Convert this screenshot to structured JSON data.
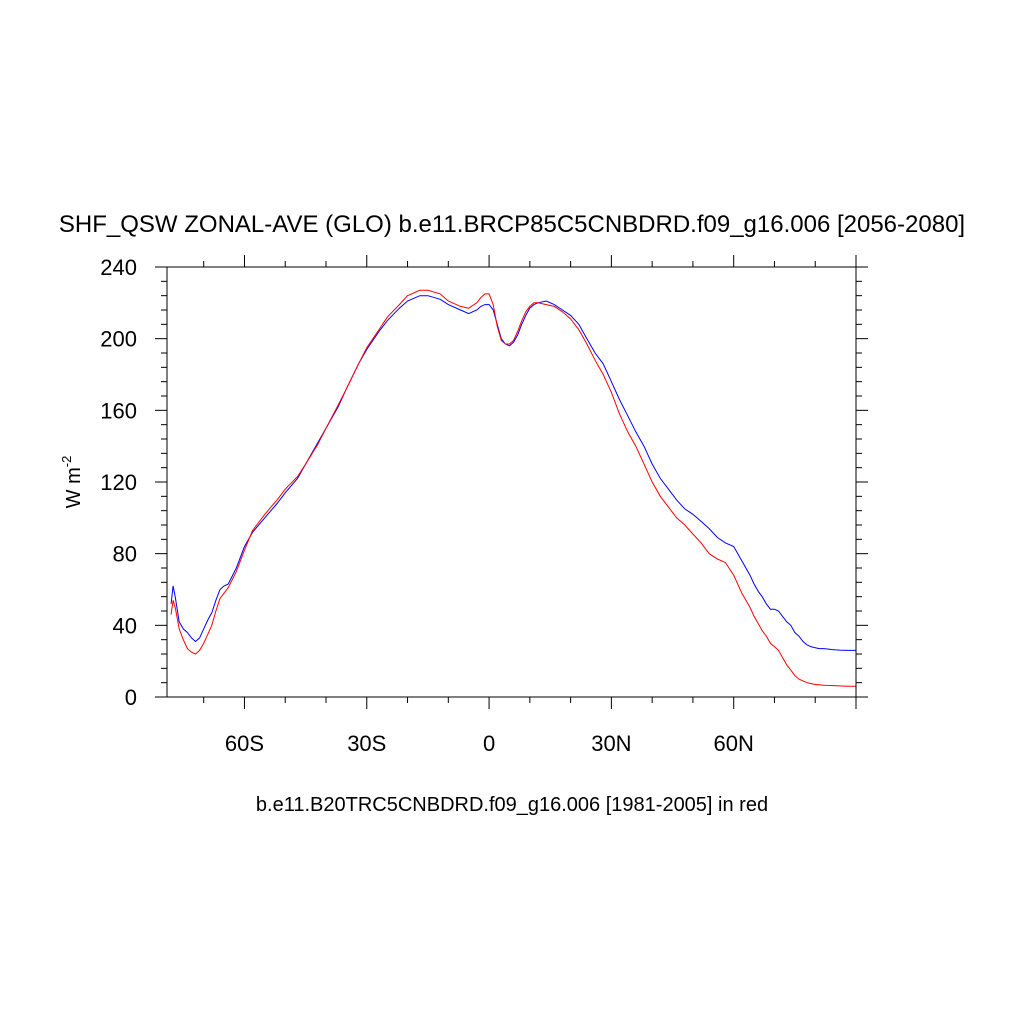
{
  "chart_data": {
    "type": "line",
    "title": "SHF_QSW ZONAL-AVE (GLO) b.e11.BRCP85C5CNBDRD.f09_g16.006 [2056-2080]",
    "xlabel": "b.e11.B20TRC5CNBDRD.f09_g16.006 [1981-2005] in red",
    "ylabel_main": "W m",
    "ylabel_sup": "-2",
    "xlim": [
      -79,
      90
    ],
    "ylim": [
      0,
      240
    ],
    "x_ticks": [
      {
        "value": -60,
        "label": "60S"
      },
      {
        "value": -30,
        "label": "30S"
      },
      {
        "value": 0,
        "label": "0"
      },
      {
        "value": 30,
        "label": "30N"
      },
      {
        "value": 60,
        "label": "60N"
      }
    ],
    "y_ticks": [
      0,
      40,
      80,
      120,
      160,
      200,
      240
    ],
    "grid": false,
    "series": [
      {
        "color": "#0000ff",
        "x": [
          -78,
          -77.5,
          -77,
          -76,
          -75,
          -74,
          -73,
          -72,
          -71,
          -70,
          -69,
          -68,
          -67,
          -66,
          -65,
          -64,
          -62,
          -60,
          -58,
          -55,
          -52,
          -50,
          -47,
          -45,
          -42,
          -40,
          -37,
          -35,
          -32,
          -30,
          -27,
          -25,
          -22,
          -20,
          -17,
          -15,
          -12,
          -10,
          -7,
          -5,
          -3,
          -2,
          -1,
          0,
          1,
          2,
          3,
          4,
          5,
          6,
          7,
          8,
          9,
          10,
          11,
          12,
          14,
          16,
          18,
          20,
          22,
          24,
          26,
          28,
          30,
          32,
          34,
          36,
          38,
          40,
          42,
          44,
          46,
          48,
          50,
          52,
          54,
          56,
          58,
          60,
          62,
          64,
          65,
          66,
          67,
          68,
          69,
          70,
          71,
          72,
          73,
          74,
          75,
          76,
          77,
          78,
          79,
          80,
          81,
          82,
          83,
          84,
          85,
          86,
          87,
          88,
          89,
          90
        ],
        "values": [
          52,
          62,
          56,
          42,
          38,
          36,
          33,
          31,
          33,
          38,
          43,
          47,
          54,
          60,
          62,
          63,
          72,
          84,
          92,
          100,
          108,
          114,
          122,
          130,
          142,
          150,
          162,
          172,
          186,
          194,
          204,
          210,
          217,
          221,
          224,
          224,
          222,
          219,
          216,
          214,
          216,
          218,
          219,
          219,
          216,
          208,
          200,
          197,
          196,
          198,
          202,
          208,
          213,
          217,
          219,
          220,
          221,
          219,
          216,
          213,
          208,
          200,
          192,
          186,
          176,
          166,
          157,
          148,
          140,
          130,
          122,
          116,
          110,
          105,
          102,
          98,
          94,
          89,
          86,
          84,
          76,
          68,
          63,
          59,
          56,
          52,
          49,
          49,
          48,
          45,
          42,
          40,
          36,
          34,
          31,
          29,
          28,
          27.5,
          27,
          27,
          26.8,
          26.5,
          26.3,
          26.2,
          26.1,
          26,
          26,
          26
        ]
      },
      {
        "color": "#ff0000",
        "x": [
          -78,
          -77.5,
          -77,
          -76,
          -75,
          -74,
          -73,
          -72,
          -71,
          -70,
          -69,
          -68,
          -67,
          -66,
          -65,
          -64,
          -62,
          -60,
          -58,
          -55,
          -52,
          -50,
          -47,
          -45,
          -42,
          -40,
          -37,
          -35,
          -32,
          -30,
          -27,
          -25,
          -22,
          -20,
          -17,
          -15,
          -12,
          -10,
          -7,
          -5,
          -3,
          -2,
          -1,
          0,
          1,
          2,
          3,
          4,
          5,
          6,
          7,
          8,
          9,
          10,
          11,
          12,
          14,
          16,
          18,
          20,
          22,
          24,
          26,
          28,
          30,
          32,
          34,
          36,
          38,
          40,
          42,
          44,
          46,
          48,
          50,
          52,
          54,
          56,
          58,
          60,
          62,
          64,
          65,
          66,
          67,
          68,
          69,
          70,
          71,
          72,
          73,
          74,
          75,
          76,
          77,
          78,
          79,
          80,
          81,
          82,
          83,
          84,
          85,
          86,
          87,
          88,
          89,
          90
        ],
        "values": [
          46,
          54,
          50,
          38,
          32,
          27,
          25,
          24,
          26,
          30,
          35,
          40,
          48,
          55,
          58,
          61,
          70,
          82,
          93,
          102,
          110,
          116,
          123,
          130,
          141,
          150,
          163,
          172,
          186,
          195,
          205,
          212,
          219,
          224,
          227,
          227,
          225,
          221,
          218,
          217,
          220,
          223,
          225,
          225,
          219,
          207,
          199,
          197,
          197,
          199,
          204,
          210,
          215,
          218,
          220,
          220,
          219,
          218,
          215,
          211,
          205,
          197,
          188,
          180,
          170,
          158,
          148,
          140,
          130,
          120,
          112,
          106,
          100,
          96,
          91,
          86,
          80,
          77,
          75,
          68,
          58,
          50,
          45,
          41,
          37,
          34,
          30,
          28,
          26,
          22,
          18,
          15,
          12,
          10,
          9,
          8,
          7.5,
          7,
          6.8,
          6.6,
          6.5,
          6.4,
          6.3,
          6.2,
          6.1,
          6,
          6,
          6
        ]
      }
    ]
  }
}
